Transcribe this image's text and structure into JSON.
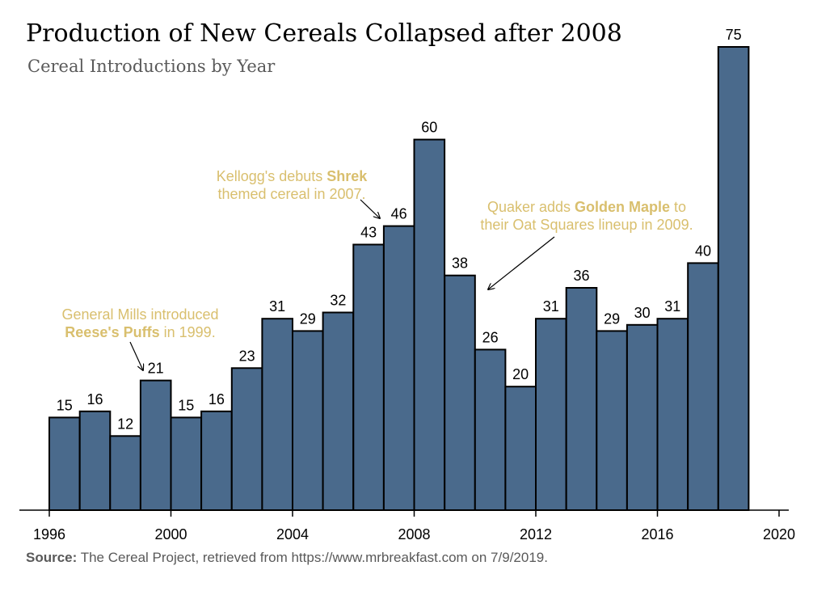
{
  "chart_data": {
    "type": "bar",
    "title": "Production of New Cereals Collapsed after 2008",
    "subtitle": "Cereal Introductions by Year",
    "xlabel": "",
    "ylabel": "",
    "grid": false,
    "categories": [
      1997,
      1998,
      1999,
      2000,
      2001,
      2002,
      2003,
      2004,
      2005,
      2006,
      2007,
      2008,
      2009,
      2010,
      2011,
      2012,
      2013,
      2014,
      2015,
      2016,
      2017,
      2018,
      2019
    ],
    "values": [
      15,
      16,
      12,
      21,
      15,
      16,
      23,
      31,
      29,
      32,
      43,
      46,
      60,
      38,
      26,
      20,
      31,
      36,
      29,
      30,
      31,
      40,
      75
    ],
    "xlim": [
      1996,
      2020
    ],
    "ylim": [
      0,
      75
    ],
    "x_ticks": [
      1996,
      2000,
      2004,
      2008,
      2012,
      2016,
      2020
    ],
    "annotations": [
      {
        "line1_pre": "General Mills introduced",
        "line2_bold": "Reese's Puffs",
        "line2_post": " in 1999.",
        "points_to": 1999
      },
      {
        "line1_pre": "Kellogg's debuts ",
        "line1_bold": "Shrek",
        "line2": "themed cereal in 2007.",
        "points_to": 2007
      },
      {
        "line1_pre": "Quaker adds ",
        "line1_bold": "Golden Maple",
        "line1_post": " to",
        "line2": "their Oat Squares lineup in 2009.",
        "points_to": 2009
      }
    ],
    "source_label": "Source:",
    "source_text": " The Cereal Project, retrieved from https://www.mrbreakfast.com on 7/9/2019."
  },
  "colors": {
    "bar": "#4a6a8c",
    "annotation": "#d9bf6e",
    "subtitle": "#5a5a5a",
    "source": "#595959"
  }
}
